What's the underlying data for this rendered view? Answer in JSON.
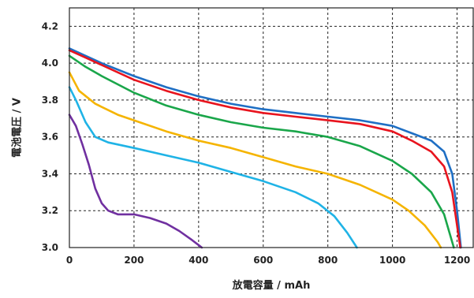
{
  "chart_data": {
    "type": "line",
    "xlabel": "放電容量 / mAh",
    "ylabel": "電池電圧 / V",
    "xlim": [
      0,
      1250
    ],
    "ylim": [
      3.0,
      4.3
    ],
    "x_ticks": [
      0,
      200,
      400,
      600,
      800,
      1000,
      1200
    ],
    "x_tick_labels": [
      "0",
      "200",
      "400",
      "600",
      "800",
      "1000",
      "1200"
    ],
    "y_ticks": [
      3.0,
      3.2,
      3.4,
      3.6,
      3.8,
      4.0,
      4.2
    ],
    "y_tick_labels": [
      "3.0",
      "3.2",
      "3.4",
      "3.6",
      "3.8",
      "4.0",
      "4.2"
    ],
    "grid": true,
    "legend": "none",
    "series": [
      {
        "color": "#1f6fc4",
        "points": [
          [
            0,
            4.08
          ],
          [
            50,
            4.04
          ],
          [
            100,
            4.0
          ],
          [
            200,
            3.93
          ],
          [
            300,
            3.87
          ],
          [
            400,
            3.82
          ],
          [
            500,
            3.78
          ],
          [
            600,
            3.75
          ],
          [
            700,
            3.73
          ],
          [
            800,
            3.71
          ],
          [
            900,
            3.69
          ],
          [
            1000,
            3.66
          ],
          [
            1060,
            3.62
          ],
          [
            1120,
            3.58
          ],
          [
            1160,
            3.52
          ],
          [
            1185,
            3.4
          ],
          [
            1200,
            3.2
          ],
          [
            1212,
            3.0
          ]
        ]
      },
      {
        "color": "#e8141e",
        "points": [
          [
            0,
            4.07
          ],
          [
            50,
            4.03
          ],
          [
            100,
            3.99
          ],
          [
            200,
            3.91
          ],
          [
            300,
            3.85
          ],
          [
            400,
            3.8
          ],
          [
            500,
            3.76
          ],
          [
            600,
            3.73
          ],
          [
            700,
            3.71
          ],
          [
            800,
            3.69
          ],
          [
            900,
            3.67
          ],
          [
            1000,
            3.63
          ],
          [
            1060,
            3.58
          ],
          [
            1120,
            3.52
          ],
          [
            1160,
            3.44
          ],
          [
            1185,
            3.3
          ],
          [
            1200,
            3.12
          ],
          [
            1210,
            3.0
          ]
        ]
      },
      {
        "color": "#1aa64a",
        "points": [
          [
            0,
            4.04
          ],
          [
            50,
            3.98
          ],
          [
            100,
            3.93
          ],
          [
            200,
            3.84
          ],
          [
            300,
            3.77
          ],
          [
            400,
            3.72
          ],
          [
            500,
            3.68
          ],
          [
            600,
            3.65
          ],
          [
            700,
            3.63
          ],
          [
            800,
            3.6
          ],
          [
            900,
            3.55
          ],
          [
            1000,
            3.47
          ],
          [
            1060,
            3.4
          ],
          [
            1120,
            3.3
          ],
          [
            1160,
            3.18
          ],
          [
            1180,
            3.06
          ],
          [
            1190,
            3.0
          ]
        ]
      },
      {
        "color": "#f5b400",
        "points": [
          [
            0,
            3.95
          ],
          [
            30,
            3.85
          ],
          [
            80,
            3.78
          ],
          [
            150,
            3.72
          ],
          [
            200,
            3.69
          ],
          [
            300,
            3.63
          ],
          [
            400,
            3.58
          ],
          [
            500,
            3.54
          ],
          [
            600,
            3.49
          ],
          [
            700,
            3.44
          ],
          [
            800,
            3.4
          ],
          [
            900,
            3.34
          ],
          [
            1000,
            3.26
          ],
          [
            1050,
            3.2
          ],
          [
            1100,
            3.12
          ],
          [
            1140,
            3.03
          ],
          [
            1150,
            3.0
          ]
        ]
      },
      {
        "color": "#1fb3e6",
        "points": [
          [
            0,
            3.87
          ],
          [
            20,
            3.8
          ],
          [
            50,
            3.68
          ],
          [
            80,
            3.6
          ],
          [
            120,
            3.57
          ],
          [
            200,
            3.54
          ],
          [
            300,
            3.5
          ],
          [
            400,
            3.46
          ],
          [
            500,
            3.41
          ],
          [
            600,
            3.36
          ],
          [
            700,
            3.3
          ],
          [
            770,
            3.24
          ],
          [
            820,
            3.17
          ],
          [
            860,
            3.08
          ],
          [
            890,
            3.0
          ]
        ]
      },
      {
        "color": "#7030a0",
        "points": [
          [
            0,
            3.72
          ],
          [
            20,
            3.66
          ],
          [
            40,
            3.56
          ],
          [
            60,
            3.45
          ],
          [
            80,
            3.32
          ],
          [
            100,
            3.24
          ],
          [
            120,
            3.2
          ],
          [
            150,
            3.18
          ],
          [
            200,
            3.18
          ],
          [
            250,
            3.16
          ],
          [
            300,
            3.13
          ],
          [
            340,
            3.09
          ],
          [
            380,
            3.04
          ],
          [
            410,
            3.0
          ]
        ]
      }
    ]
  }
}
